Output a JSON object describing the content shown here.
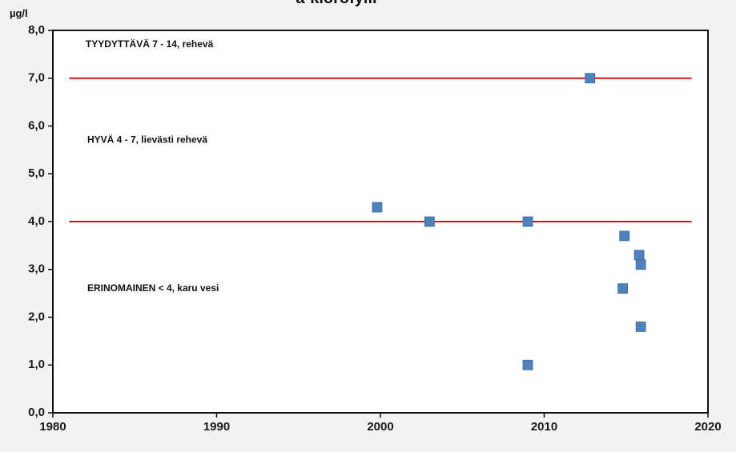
{
  "chart_data": {
    "type": "scatter",
    "title": "a-klorofylli",
    "ylabel": "µg/l",
    "xlim": [
      1980,
      2020
    ],
    "ylim": [
      0,
      8
    ],
    "x_ticks": [
      "1980",
      "1990",
      "2000",
      "2010",
      "2020"
    ],
    "y_ticks": [
      "0,0",
      "1,0",
      "2,0",
      "3,0",
      "4,0",
      "5,0",
      "6,0",
      "7,0",
      "8,0"
    ],
    "grid": false,
    "series": [
      {
        "color": "#4f81bd",
        "points": [
          {
            "x": 1999.8,
            "y": 4.3
          },
          {
            "x": 2003.0,
            "y": 4.0
          },
          {
            "x": 2009.0,
            "y": 4.0
          },
          {
            "x": 2009.0,
            "y": 1.0
          },
          {
            "x": 2012.8,
            "y": 7.0
          },
          {
            "x": 2014.9,
            "y": 3.7
          },
          {
            "x": 2014.8,
            "y": 2.6
          },
          {
            "x": 2015.8,
            "y": 3.3
          },
          {
            "x": 2015.9,
            "y": 3.1
          },
          {
            "x": 2015.9,
            "y": 1.8
          }
        ]
      }
    ],
    "thresholds": [
      {
        "y": 7.0,
        "color": "#e01010",
        "x_range": [
          1981,
          2019
        ]
      },
      {
        "y": 4.0,
        "color": "#e01010",
        "x_range": [
          1981,
          2019
        ]
      }
    ],
    "annotations": [
      {
        "text": "TYYDYTTÄVÄ 7 - 14, rehevä",
        "x": 1982,
        "y": 7.7
      },
      {
        "text": "HYVÄ 4 - 7, lievästi rehevä",
        "x": 1982.1,
        "y": 5.7
      },
      {
        "text": "ERINOMAINEN < 4, karu vesi",
        "x": 1982.1,
        "y": 2.6
      }
    ]
  }
}
